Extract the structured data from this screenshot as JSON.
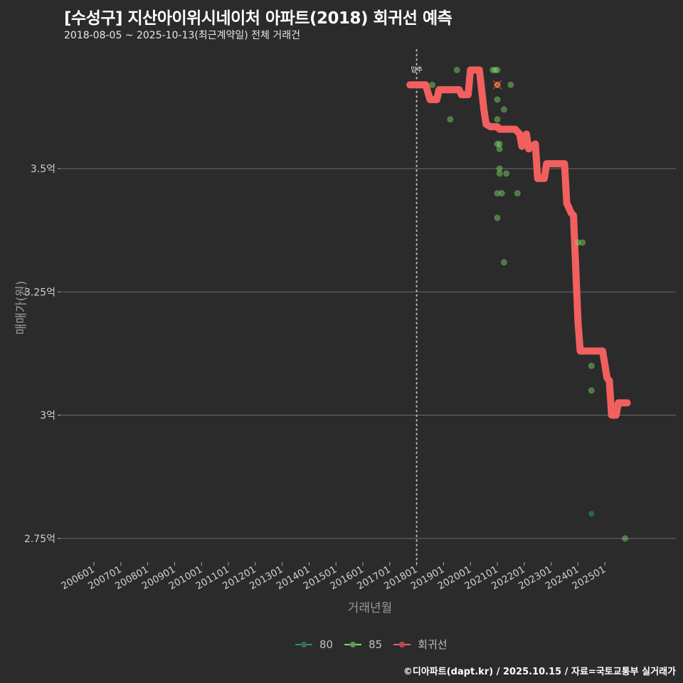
{
  "title": "[수성구] 지산아이위시네이처 아파트(2018) 회귀선 예측",
  "subtitle": "2018-08-05 ~ 2025-10-13(최근계약일) 전체 거래건",
  "caption": "©디아파트(dapt.kr) / 2025.10.15 / 자료=국토교통부 실거래가",
  "colors": {
    "background": "#2b2b2b",
    "grid": "#6b6b6b",
    "series_80": "#2e8b84",
    "series_85": "#7ddc6a",
    "regression": "#f25f5f",
    "highlight": "#e0b040",
    "highlight_x": "#e03030"
  },
  "chart_data": {
    "type": "scatter",
    "title": "[수성구] 지산아이위시네이처 아파트(2018) 회귀선 예측",
    "subtitle": "2018-08-05 ~ 2025-10-13(최근계약일) 전체 거래건",
    "xlabel": "거래년월",
    "ylabel": "매매가(원)",
    "x_ticks": [
      "200601",
      "200701",
      "200801",
      "200901",
      "201001",
      "201101",
      "201201",
      "201301",
      "201401",
      "201501",
      "201601",
      "201701",
      "201801",
      "201901",
      "202001",
      "202101",
      "202201",
      "202301",
      "202401",
      "202501"
    ],
    "y_ticks": [
      {
        "value": 2.75,
        "label": "2.75억"
      },
      {
        "value": 3.0,
        "label": "3억"
      },
      {
        "value": 3.25,
        "label": "3.25억"
      },
      {
        "value": 3.5,
        "label": "3.5억"
      }
    ],
    "ylim": [
      2.71,
      3.76
    ],
    "xlim": [
      "2005-01",
      "2026-12"
    ],
    "grid": "horizontal major only",
    "legend_position": "bottom",
    "legend": [
      "80",
      "85",
      "회귀선"
    ],
    "annotations": [
      {
        "text": "입주",
        "x": "2018-01",
        "type": "vertical dotted line"
      },
      {
        "text": "highlighted latest-type point (x marker)",
        "x": "2021-01",
        "y": 3.67
      }
    ],
    "series": [
      {
        "name": "80",
        "type": "scatter",
        "points": [
          {
            "x": "2024-07",
            "y": 2.8
          }
        ]
      },
      {
        "name": "85",
        "type": "scatter",
        "points": [
          {
            "x": "2018-08",
            "y": 3.67
          },
          {
            "x": "2019-04",
            "y": 3.6
          },
          {
            "x": "2019-07",
            "y": 3.7
          },
          {
            "x": "2020-11",
            "y": 3.7
          },
          {
            "x": "2020-12",
            "y": 3.7
          },
          {
            "x": "2021-01",
            "y": 3.7
          },
          {
            "x": "2021-01",
            "y": 3.67
          },
          {
            "x": "2021-07",
            "y": 3.67
          },
          {
            "x": "2021-01",
            "y": 3.64
          },
          {
            "x": "2021-01",
            "y": 3.6
          },
          {
            "x": "2021-04",
            "y": 3.62
          },
          {
            "x": "2021-01",
            "y": 3.55
          },
          {
            "x": "2021-02",
            "y": 3.55
          },
          {
            "x": "2021-02",
            "y": 3.54
          },
          {
            "x": "2021-02",
            "y": 3.5
          },
          {
            "x": "2021-02",
            "y": 3.49
          },
          {
            "x": "2021-05",
            "y": 3.49
          },
          {
            "x": "2021-01",
            "y": 3.45
          },
          {
            "x": "2021-03",
            "y": 3.45
          },
          {
            "x": "2021-10",
            "y": 3.45
          },
          {
            "x": "2021-01",
            "y": 3.4
          },
          {
            "x": "2021-04",
            "y": 3.31
          },
          {
            "x": "2024-01",
            "y": 3.35
          },
          {
            "x": "2024-03",
            "y": 3.35
          },
          {
            "x": "2024-07",
            "y": 3.1
          },
          {
            "x": "2024-07",
            "y": 3.05
          },
          {
            "x": "2025-10",
            "y": 2.75
          }
        ]
      },
      {
        "name": "회귀선",
        "type": "line",
        "points": [
          {
            "x": "2017-10",
            "y": 3.67
          },
          {
            "x": "2018-05",
            "y": 3.67
          },
          {
            "x": "2018-07",
            "y": 3.64
          },
          {
            "x": "2018-10",
            "y": 3.64
          },
          {
            "x": "2018-11",
            "y": 3.66
          },
          {
            "x": "2019-08",
            "y": 3.66
          },
          {
            "x": "2019-09",
            "y": 3.65
          },
          {
            "x": "2019-12",
            "y": 3.65
          },
          {
            "x": "2020-01",
            "y": 3.7
          },
          {
            "x": "2020-05",
            "y": 3.7
          },
          {
            "x": "2020-07",
            "y": 3.62
          },
          {
            "x": "2020-08",
            "y": 3.59
          },
          {
            "x": "2020-10",
            "y": 3.585
          },
          {
            "x": "2021-01",
            "y": 3.585
          },
          {
            "x": "2021-02",
            "y": 3.58
          },
          {
            "x": "2021-09",
            "y": 3.58
          },
          {
            "x": "2021-11",
            "y": 3.57
          },
          {
            "x": "2021-12",
            "y": 3.545
          },
          {
            "x": "2022-02",
            "y": 3.57
          },
          {
            "x": "2022-03",
            "y": 3.54
          },
          {
            "x": "2022-06",
            "y": 3.55
          },
          {
            "x": "2022-07",
            "y": 3.48
          },
          {
            "x": "2022-10",
            "y": 3.48
          },
          {
            "x": "2022-11",
            "y": 3.51
          },
          {
            "x": "2023-07",
            "y": 3.51
          },
          {
            "x": "2023-08",
            "y": 3.43
          },
          {
            "x": "2023-10",
            "y": 3.41
          },
          {
            "x": "2023-11",
            "y": 3.405
          },
          {
            "x": "2024-01",
            "y": 3.19
          },
          {
            "x": "2024-02",
            "y": 3.13
          },
          {
            "x": "2024-12",
            "y": 3.13
          },
          {
            "x": "2025-02",
            "y": 3.075
          },
          {
            "x": "2025-03",
            "y": 3.07
          },
          {
            "x": "2025-04",
            "y": 3.0
          },
          {
            "x": "2025-06",
            "y": 3.0
          },
          {
            "x": "2025-07",
            "y": 3.025
          },
          {
            "x": "2025-11",
            "y": 3.025
          }
        ]
      }
    ]
  },
  "legend": {
    "items": [
      {
        "label": "80"
      },
      {
        "label": "85"
      },
      {
        "label": "회귀선"
      }
    ]
  }
}
